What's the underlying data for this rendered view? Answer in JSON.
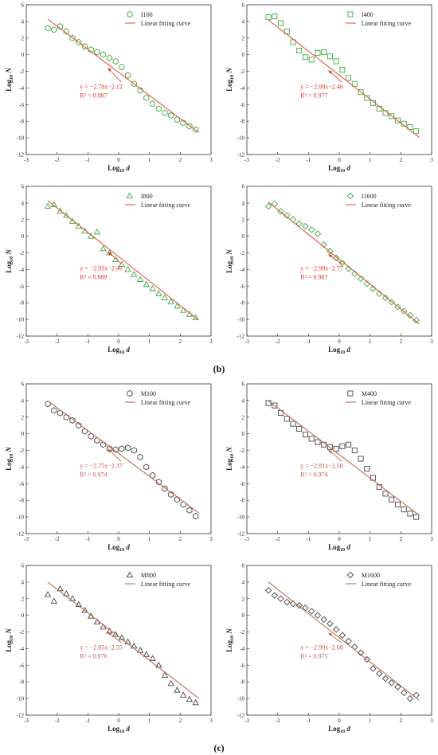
{
  "panel_labels": [
    "(b)",
    "(c)"
  ],
  "chart_data": [
    {
      "type": "scatter",
      "group": "b",
      "legend": "I100",
      "fit_label": "Linear fitting curve",
      "equation": "y = −2.78x−2.12",
      "r2": "R² = 0.987",
      "slope": -2.78,
      "intercept": -2.12,
      "marker": "hexagon",
      "color": "#3aab3a",
      "fit_color": "#e05a4a",
      "eq_color": "#e0302a",
      "xlim": [
        -3,
        3
      ],
      "ylim": [
        -12,
        6
      ],
      "xticks": [
        -3,
        -2,
        -1,
        0,
        1,
        2,
        3
      ],
      "yticks": [
        -12,
        -10,
        -8,
        -6,
        -4,
        -2,
        0,
        2,
        4,
        6
      ],
      "xlabel_pre": "Log",
      "xlabel_sub": "10",
      "xlabel_post": " d",
      "ylabel_pre": "Log",
      "ylabel_sub": "10",
      "ylabel_post": " N",
      "x": [
        -2.3,
        -2.1,
        -1.9,
        -1.7,
        -1.5,
        -1.3,
        -1.1,
        -0.9,
        -0.7,
        -0.5,
        -0.3,
        -0.1,
        0.1,
        0.3,
        0.5,
        0.7,
        0.9,
        1.1,
        1.3,
        1.5,
        1.7,
        1.9,
        2.1,
        2.3,
        2.5
      ],
      "y": [
        3.2,
        3.0,
        3.4,
        2.8,
        2.0,
        1.5,
        1.0,
        0.6,
        0.3,
        0.0,
        -0.4,
        -0.8,
        -1.5,
        -2.5,
        -3.5,
        -4.3,
        -5.2,
        -5.9,
        -6.5,
        -7.0,
        -7.3,
        -7.8,
        -8.2,
        -8.6,
        -9.0
      ]
    },
    {
      "type": "scatter",
      "group": "b",
      "legend": "I400",
      "fit_label": "Linear fitting curve",
      "equation": "y = −2.88x−2.46",
      "r2": "R² = 0.977",
      "slope": -2.88,
      "intercept": -2.46,
      "marker": "square",
      "color": "#3aab3a",
      "fit_color": "#e05a4a",
      "eq_color": "#e0302a",
      "xlim": [
        -3,
        3
      ],
      "ylim": [
        -12,
        6
      ],
      "xticks": [
        -3,
        -2,
        -1,
        0,
        1,
        2,
        3
      ],
      "yticks": [
        -12,
        -10,
        -8,
        -6,
        -4,
        -2,
        0,
        2,
        4,
        6
      ],
      "xlabel_pre": "Log",
      "xlabel_sub": "10",
      "xlabel_post": " d",
      "ylabel_pre": "Log",
      "ylabel_sub": "10",
      "ylabel_post": " N",
      "x": [
        -2.3,
        -2.1,
        -1.9,
        -1.7,
        -1.5,
        -1.3,
        -1.1,
        -0.9,
        -0.7,
        -0.5,
        -0.3,
        -0.1,
        0.1,
        0.3,
        0.5,
        0.7,
        0.9,
        1.1,
        1.3,
        1.5,
        1.7,
        1.9,
        2.1,
        2.3,
        2.5
      ],
      "y": [
        4.5,
        4.6,
        3.8,
        2.8,
        1.5,
        0.5,
        -0.3,
        -0.6,
        0.2,
        0.3,
        -0.2,
        -0.8,
        -1.8,
        -2.8,
        -3.5,
        -4.5,
        -5.2,
        -5.8,
        -6.5,
        -7.0,
        -7.4,
        -7.9,
        -8.3,
        -8.7,
        -9.2
      ]
    },
    {
      "type": "scatter",
      "group": "b",
      "legend": "I800",
      "fit_label": "Linear fitting curve",
      "equation": "y = −2.93x−2.46",
      "r2": "R² = 0.989",
      "slope": -2.93,
      "intercept": -2.46,
      "marker": "triangle",
      "color": "#3aab3a",
      "fit_color": "#e05a4a",
      "eq_color": "#e0302a",
      "xlim": [
        -3,
        3
      ],
      "ylim": [
        -12,
        6
      ],
      "xticks": [
        -3,
        -2,
        -1,
        0,
        1,
        2,
        3
      ],
      "yticks": [
        -12,
        -10,
        -8,
        -6,
        -4,
        -2,
        0,
        2,
        4,
        6
      ],
      "xlabel_pre": "Log",
      "xlabel_sub": "10",
      "xlabel_post": " d",
      "ylabel_pre": "Log",
      "ylabel_sub": "10",
      "ylabel_post": " N",
      "x": [
        -2.3,
        -2.1,
        -1.9,
        -1.7,
        -1.5,
        -1.3,
        -1.1,
        -0.9,
        -0.7,
        -0.5,
        -0.3,
        -0.1,
        0.1,
        0.3,
        0.5,
        0.7,
        0.9,
        1.1,
        1.3,
        1.5,
        1.7,
        1.9,
        2.1,
        2.3,
        2.5
      ],
      "y": [
        3.6,
        3.8,
        3.0,
        2.5,
        1.8,
        1.2,
        0.6,
        0.0,
        0.5,
        -1.5,
        -2.0,
        -2.8,
        -3.4,
        -4.0,
        -4.6,
        -5.2,
        -5.8,
        -6.3,
        -6.9,
        -7.4,
        -7.9,
        -8.4,
        -8.9,
        -9.4,
        -9.8
      ]
    },
    {
      "type": "scatter",
      "group": "b",
      "legend": "I1600",
      "fit_label": "Linear fitting curve",
      "equation": "y = −2.99x−2.77",
      "r2": "R² = 0.987",
      "slope": -2.99,
      "intercept": -2.77,
      "marker": "diamond",
      "color": "#3aab3a",
      "fit_color": "#e05a4a",
      "eq_color": "#e0302a",
      "xlim": [
        -3,
        3
      ],
      "ylim": [
        -12,
        6
      ],
      "xticks": [
        -3,
        -2,
        -1,
        0,
        1,
        2,
        3
      ],
      "yticks": [
        -12,
        -10,
        -8,
        -6,
        -4,
        -2,
        0,
        2,
        4,
        6
      ],
      "xlabel_pre": "Log",
      "xlabel_sub": "10",
      "xlabel_post": " d",
      "ylabel_pre": "Log",
      "ylabel_sub": "10",
      "ylabel_post": " N",
      "x": [
        -2.3,
        -2.1,
        -1.9,
        -1.7,
        -1.5,
        -1.3,
        -1.1,
        -0.9,
        -0.7,
        -0.5,
        -0.3,
        -0.1,
        0.1,
        0.3,
        0.5,
        0.7,
        0.9,
        1.1,
        1.3,
        1.5,
        1.7,
        1.9,
        2.1,
        2.3,
        2.5
      ],
      "y": [
        3.6,
        3.9,
        3.0,
        2.5,
        2.0,
        1.5,
        1.2,
        0.8,
        0.3,
        -1.0,
        -1.8,
        -2.6,
        -3.2,
        -3.9,
        -4.5,
        -5.1,
        -5.7,
        -6.3,
        -6.9,
        -7.4,
        -7.9,
        -8.5,
        -9.0,
        -9.5,
        -10.1
      ]
    },
    {
      "type": "scatter",
      "group": "c",
      "legend": "M100",
      "fit_label": "Linear fitting curve",
      "equation": "y = −2.75x−2.37",
      "r2": "R² = 0.974",
      "slope": -2.75,
      "intercept": -2.37,
      "marker": "hexagon",
      "color": "#444444",
      "fit_color": "#b86e50",
      "eq_color": "#b85a45",
      "xlim": [
        -3,
        3
      ],
      "ylim": [
        -12,
        6
      ],
      "xticks": [
        -3,
        -2,
        -1,
        0,
        1,
        2,
        3
      ],
      "yticks": [
        -12,
        -10,
        -8,
        -6,
        -4,
        -2,
        0,
        2,
        4,
        6
      ],
      "xlabel_pre": "Log",
      "xlabel_sub": "10",
      "xlabel_post": " d",
      "ylabel_pre": "Log",
      "ylabel_sub": "10",
      "ylabel_post": " N",
      "x": [
        -2.3,
        -2.1,
        -1.9,
        -1.7,
        -1.5,
        -1.3,
        -1.1,
        -0.9,
        -0.7,
        -0.5,
        -0.3,
        -0.1,
        0.1,
        0.3,
        0.5,
        0.7,
        0.9,
        1.1,
        1.3,
        1.5,
        1.7,
        1.9,
        2.1,
        2.3,
        2.5
      ],
      "y": [
        3.6,
        2.8,
        2.5,
        2.0,
        1.6,
        1.0,
        0.3,
        -0.3,
        -0.8,
        -1.3,
        -1.8,
        -1.9,
        -1.8,
        -1.7,
        -2.0,
        -2.8,
        -4.0,
        -5.0,
        -5.8,
        -6.6,
        -7.3,
        -7.9,
        -8.5,
        -9.2,
        -9.9
      ]
    },
    {
      "type": "scatter",
      "group": "c",
      "legend": "M400",
      "fit_label": "Linear fitting curve",
      "equation": "y = −2.81x−2.50",
      "r2": "R² = 0.974",
      "slope": -2.81,
      "intercept": -2.5,
      "marker": "square",
      "color": "#444444",
      "fit_color": "#b86e50",
      "eq_color": "#b85a45",
      "xlim": [
        -3,
        3
      ],
      "ylim": [
        -12,
        6
      ],
      "xticks": [
        -3,
        -2,
        -1,
        0,
        1,
        2,
        3
      ],
      "yticks": [
        -12,
        -10,
        -8,
        -6,
        -4,
        -2,
        0,
        2,
        4,
        6
      ],
      "xlabel_pre": "Log",
      "xlabel_sub": "10",
      "xlabel_post": " d",
      "ylabel_pre": "Log",
      "ylabel_sub": "10",
      "ylabel_post": " N",
      "x": [
        -2.3,
        -2.1,
        -1.9,
        -1.7,
        -1.5,
        -1.3,
        -1.1,
        -0.9,
        -0.7,
        -0.5,
        -0.3,
        -0.1,
        0.1,
        0.3,
        0.5,
        0.7,
        0.9,
        1.1,
        1.3,
        1.5,
        1.7,
        1.9,
        2.1,
        2.3,
        2.5
      ],
      "y": [
        3.7,
        3.4,
        2.5,
        1.8,
        1.2,
        0.6,
        -0.1,
        -0.6,
        -1.0,
        -1.3,
        -1.6,
        -1.8,
        -1.5,
        -1.3,
        -2.0,
        -3.0,
        -4.2,
        -5.3,
        -6.4,
        -7.2,
        -7.9,
        -8.5,
        -9.1,
        -9.6,
        -10.0
      ]
    },
    {
      "type": "scatter",
      "group": "c",
      "legend": "M800",
      "fit_label": "Linear fitting curve",
      "equation": "y = −2.85x−2.55",
      "r2": "R² = 0.976",
      "slope": -2.85,
      "intercept": -2.55,
      "marker": "triangle",
      "color": "#444444",
      "fit_color": "#b86e50",
      "eq_color": "#b85a45",
      "xlim": [
        -3,
        3
      ],
      "ylim": [
        -12,
        6
      ],
      "xticks": [
        -3,
        -2,
        -1,
        0,
        1,
        2,
        3
      ],
      "yticks": [
        -12,
        -10,
        -8,
        -6,
        -4,
        -2,
        0,
        2,
        4,
        6
      ],
      "xlabel_pre": "Log",
      "xlabel_sub": "10",
      "xlabel_post": " d",
      "ylabel_pre": "Log",
      "ylabel_sub": "10",
      "ylabel_post": " N",
      "x": [
        -2.3,
        -2.1,
        -1.9,
        -1.7,
        -1.5,
        -1.3,
        -1.1,
        -0.9,
        -0.7,
        -0.5,
        -0.3,
        -0.1,
        0.1,
        0.3,
        0.5,
        0.7,
        0.9,
        1.1,
        1.3,
        1.5,
        1.7,
        1.9,
        2.1,
        2.3,
        2.5
      ],
      "y": [
        2.5,
        1.7,
        3.2,
        2.6,
        2.0,
        1.3,
        0.6,
        -0.1,
        -0.8,
        -1.4,
        -1.9,
        -2.3,
        -2.7,
        -3.2,
        -3.7,
        -4.2,
        -4.7,
        -5.2,
        -6.0,
        -7.2,
        -8.2,
        -9.0,
        -9.6,
        -10.1,
        -10.5
      ]
    },
    {
      "type": "scatter",
      "group": "c",
      "legend": "M1600",
      "fit_label": "Linear fitting curve",
      "equation": "y = −2.90x−2.68",
      "r2": "R² = 0.975",
      "slope": -2.9,
      "intercept": -2.68,
      "marker": "diamond",
      "color": "#444444",
      "fit_color": "#b86e50",
      "eq_color": "#b85a45",
      "xlim": [
        -3,
        3
      ],
      "ylim": [
        -12,
        6
      ],
      "xticks": [
        -3,
        -2,
        -1,
        0,
        1,
        2,
        3
      ],
      "yticks": [
        -12,
        -10,
        -8,
        -6,
        -4,
        -2,
        0,
        2,
        4,
        6
      ],
      "xlabel_pre": "Log",
      "xlabel_sub": "10",
      "xlabel_post": " d",
      "ylabel_pre": "Log",
      "ylabel_sub": "10",
      "ylabel_post": " N",
      "x": [
        -2.3,
        -2.1,
        -1.9,
        -1.7,
        -1.5,
        -1.3,
        -1.1,
        -0.9,
        -0.7,
        -0.5,
        -0.3,
        -0.1,
        0.1,
        0.3,
        0.5,
        0.7,
        0.9,
        1.1,
        1.3,
        1.5,
        1.7,
        1.9,
        2.1,
        2.3,
        2.5
      ],
      "y": [
        3.0,
        2.4,
        2.0,
        1.6,
        1.4,
        1.2,
        0.9,
        0.5,
        0.0,
        -0.5,
        -1.0,
        -1.7,
        -2.4,
        -3.1,
        -3.8,
        -4.5,
        -5.3,
        -6.4,
        -7.0,
        -7.6,
        -8.1,
        -8.6,
        -9.3,
        -10.0,
        -9.6
      ]
    }
  ]
}
